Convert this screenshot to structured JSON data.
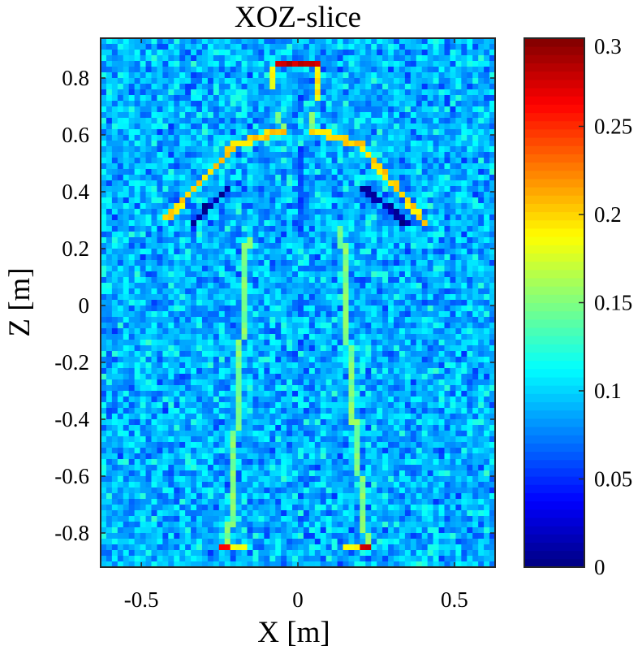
{
  "chart_data": {
    "type": "heatmap",
    "title": "XOZ-slice",
    "xlabel": "X [m]",
    "ylabel": "Z [m]",
    "xlim": [
      -0.63,
      0.63
    ],
    "ylim": [
      -0.92,
      0.94
    ],
    "xticks": [
      -0.5,
      0,
      0.5
    ],
    "xtick_labels": [
      "-0.5",
      "0",
      "0.5"
    ],
    "yticks": [
      0.8,
      0.6,
      0.4,
      0.2,
      0,
      -0.2,
      -0.4,
      -0.6,
      -0.8
    ],
    "ytick_labels": [
      "0.8",
      "0.6",
      "0.4",
      "0.2",
      "0",
      "-0.2",
      "-0.4",
      "-0.6",
      "-0.8"
    ],
    "grid_cols": 70,
    "grid_rows": 93,
    "colormap": "jet",
    "background_mean": 0.09,
    "background_noise": 0.025,
    "colorbar": {
      "range": [
        0,
        0.3
      ],
      "ticks": [
        0,
        0.05,
        0.1,
        0.15,
        0.2,
        0.25,
        0.3
      ],
      "tick_labels": [
        "0",
        "0.05",
        "0.1",
        "0.15",
        "0.2",
        "0.25",
        "0.3"
      ]
    },
    "features": [
      {
        "name": "head-top",
        "value": 0.28,
        "points": [
          [
            -0.07,
            0.85
          ],
          [
            0.06,
            0.85
          ]
        ]
      },
      {
        "name": "head-left",
        "value": 0.19,
        "points": [
          [
            -0.08,
            0.83
          ],
          [
            -0.08,
            0.76
          ]
        ]
      },
      {
        "name": "head-right",
        "value": 0.19,
        "points": [
          [
            0.06,
            0.83
          ],
          [
            0.06,
            0.74
          ]
        ]
      },
      {
        "name": "neck-left",
        "value": 0.15,
        "points": [
          [
            -0.06,
            0.67
          ],
          [
            -0.05,
            0.62
          ]
        ]
      },
      {
        "name": "neck-right",
        "value": 0.15,
        "points": [
          [
            0.04,
            0.67
          ],
          [
            0.05,
            0.62
          ]
        ]
      },
      {
        "name": "left-shoulder-arm",
        "value": 0.2,
        "points": [
          [
            -0.05,
            0.62
          ],
          [
            -0.2,
            0.56
          ],
          [
            -0.42,
            0.31
          ]
        ]
      },
      {
        "name": "right-shoulder-arm",
        "value": 0.2,
        "points": [
          [
            0.05,
            0.62
          ],
          [
            0.2,
            0.56
          ],
          [
            0.4,
            0.3
          ]
        ]
      },
      {
        "name": "left-arm-shadow",
        "value": 0.01,
        "points": [
          [
            -0.22,
            0.41
          ],
          [
            -0.34,
            0.29
          ]
        ]
      },
      {
        "name": "right-arm-shadow",
        "value": 0.01,
        "points": [
          [
            0.2,
            0.42
          ],
          [
            0.35,
            0.29
          ]
        ]
      },
      {
        "name": "left-leg",
        "value": 0.15,
        "points": [
          [
            -0.16,
            0.24
          ],
          [
            -0.19,
            -0.3
          ],
          [
            -0.22,
            -0.84
          ]
        ]
      },
      {
        "name": "right-leg",
        "value": 0.15,
        "points": [
          [
            0.14,
            0.28
          ],
          [
            0.17,
            -0.3
          ],
          [
            0.22,
            -0.84
          ]
        ]
      },
      {
        "name": "left-foot",
        "value": 0.27,
        "points": [
          [
            -0.24,
            -0.84
          ],
          [
            -0.21,
            -0.84
          ]
        ]
      },
      {
        "name": "right-foot",
        "value": 0.27,
        "points": [
          [
            0.2,
            -0.84
          ],
          [
            0.23,
            -0.84
          ]
        ]
      },
      {
        "name": "left-foot-inner",
        "value": 0.19,
        "points": [
          [
            -0.2,
            -0.84
          ],
          [
            -0.18,
            -0.84
          ]
        ]
      },
      {
        "name": "right-foot-inner",
        "value": 0.19,
        "points": [
          [
            0.16,
            -0.84
          ],
          [
            0.19,
            -0.84
          ]
        ]
      },
      {
        "name": "torso",
        "value": 0.06,
        "points": [
          [
            0,
            0.55
          ],
          [
            0,
            0.25
          ]
        ]
      }
    ]
  }
}
